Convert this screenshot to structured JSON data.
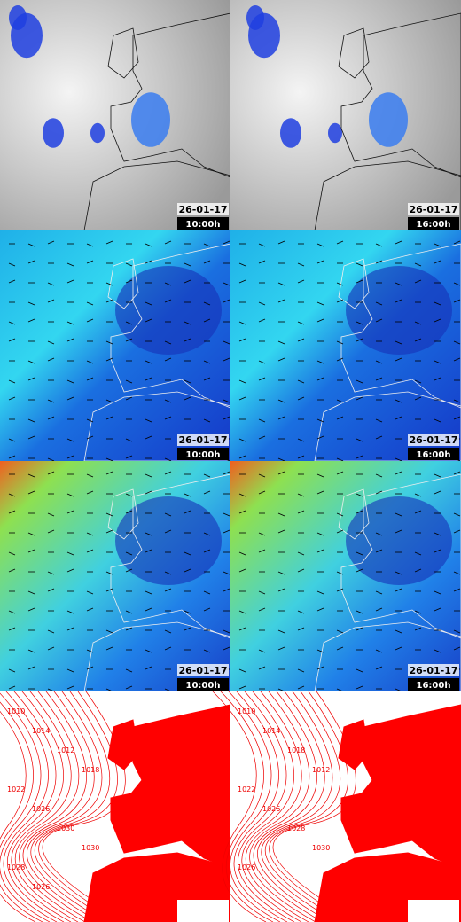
{
  "rows": [
    {
      "panels": [
        {
          "date": "26-01-17",
          "time": "10:00h"
        },
        {
          "date": "26-01-17",
          "time": "16:00h"
        }
      ]
    },
    {
      "panels": [
        {
          "date": "26-01-17",
          "time": "10:00h"
        },
        {
          "date": "26-01-17",
          "time": "16:00h"
        }
      ]
    },
    {
      "panels": [
        {
          "date": "26-01-17",
          "time": "10:00h"
        },
        {
          "date": "26-01-17",
          "time": "16:00h"
        }
      ]
    }
  ],
  "pressure": [
    {
      "labels": [
        "1010",
        "1014",
        "1012",
        "1018",
        "1022",
        "1026",
        "1030",
        "1030",
        "1028",
        "1026"
      ]
    },
    {
      "labels": [
        "1010",
        "1014",
        "1018",
        "1012",
        "1022",
        "1026",
        "1028",
        "1030",
        "1026"
      ]
    }
  ]
}
